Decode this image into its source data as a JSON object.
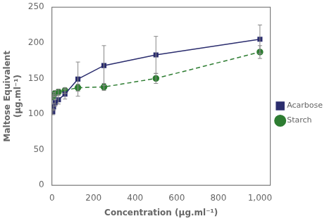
{
  "chart_data": {
    "type": "line",
    "xlabel": "Concentration (μg.ml⁻¹)",
    "ylabel": "Maltose Equivalent\n(μg.ml⁻¹)",
    "x": [
      3.9,
      7.8,
      15.6,
      31.25,
      62.5,
      125,
      250,
      500,
      1000
    ],
    "series": [
      {
        "name": "Acarbose",
        "color": "#2b2d6e",
        "marker": "square",
        "line_style": "solid",
        "values": [
          103,
          110,
          116,
          120,
          128,
          149,
          168,
          183,
          205
        ],
        "yerr": [
          4,
          5,
          5,
          6,
          7,
          24,
          28,
          26,
          20
        ]
      },
      {
        "name": "Starch",
        "color": "#2e7d32",
        "marker": "circle",
        "line_style": "dashed",
        "values": [
          124,
          127,
          129,
          131,
          133,
          137,
          138,
          150,
          187
        ],
        "yerr": [
          3,
          3,
          4,
          4,
          4,
          5,
          5,
          7,
          9
        ]
      }
    ],
    "xlim": [
      0,
      1050
    ],
    "xticks": [
      0,
      200,
      400,
      600,
      800,
      1000
    ],
    "ylim": [
      0,
      250
    ],
    "yticks": [
      0,
      50,
      100,
      150,
      200,
      250
    ],
    "grid": false,
    "legend": "right"
  }
}
